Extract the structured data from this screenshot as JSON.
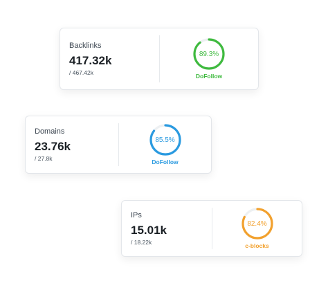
{
  "cards": [
    {
      "label": "Backlinks",
      "value": "417.32k",
      "total": "/ 467.42k",
      "percent_label": "89.3%",
      "percent": 89.3,
      "caption": "DoFollow",
      "color": "#3fba3f"
    },
    {
      "label": "Domains",
      "value": "23.76k",
      "total": "/ 27.8k",
      "percent_label": "85.5%",
      "percent": 85.5,
      "caption": "DoFollow",
      "color": "#2a9ae0"
    },
    {
      "label": "IPs",
      "value": "15.01k",
      "total": "/ 18.22k",
      "percent_label": "82.4%",
      "percent": 82.4,
      "caption": "c-blocks",
      "color": "#f2a12e"
    }
  ]
}
